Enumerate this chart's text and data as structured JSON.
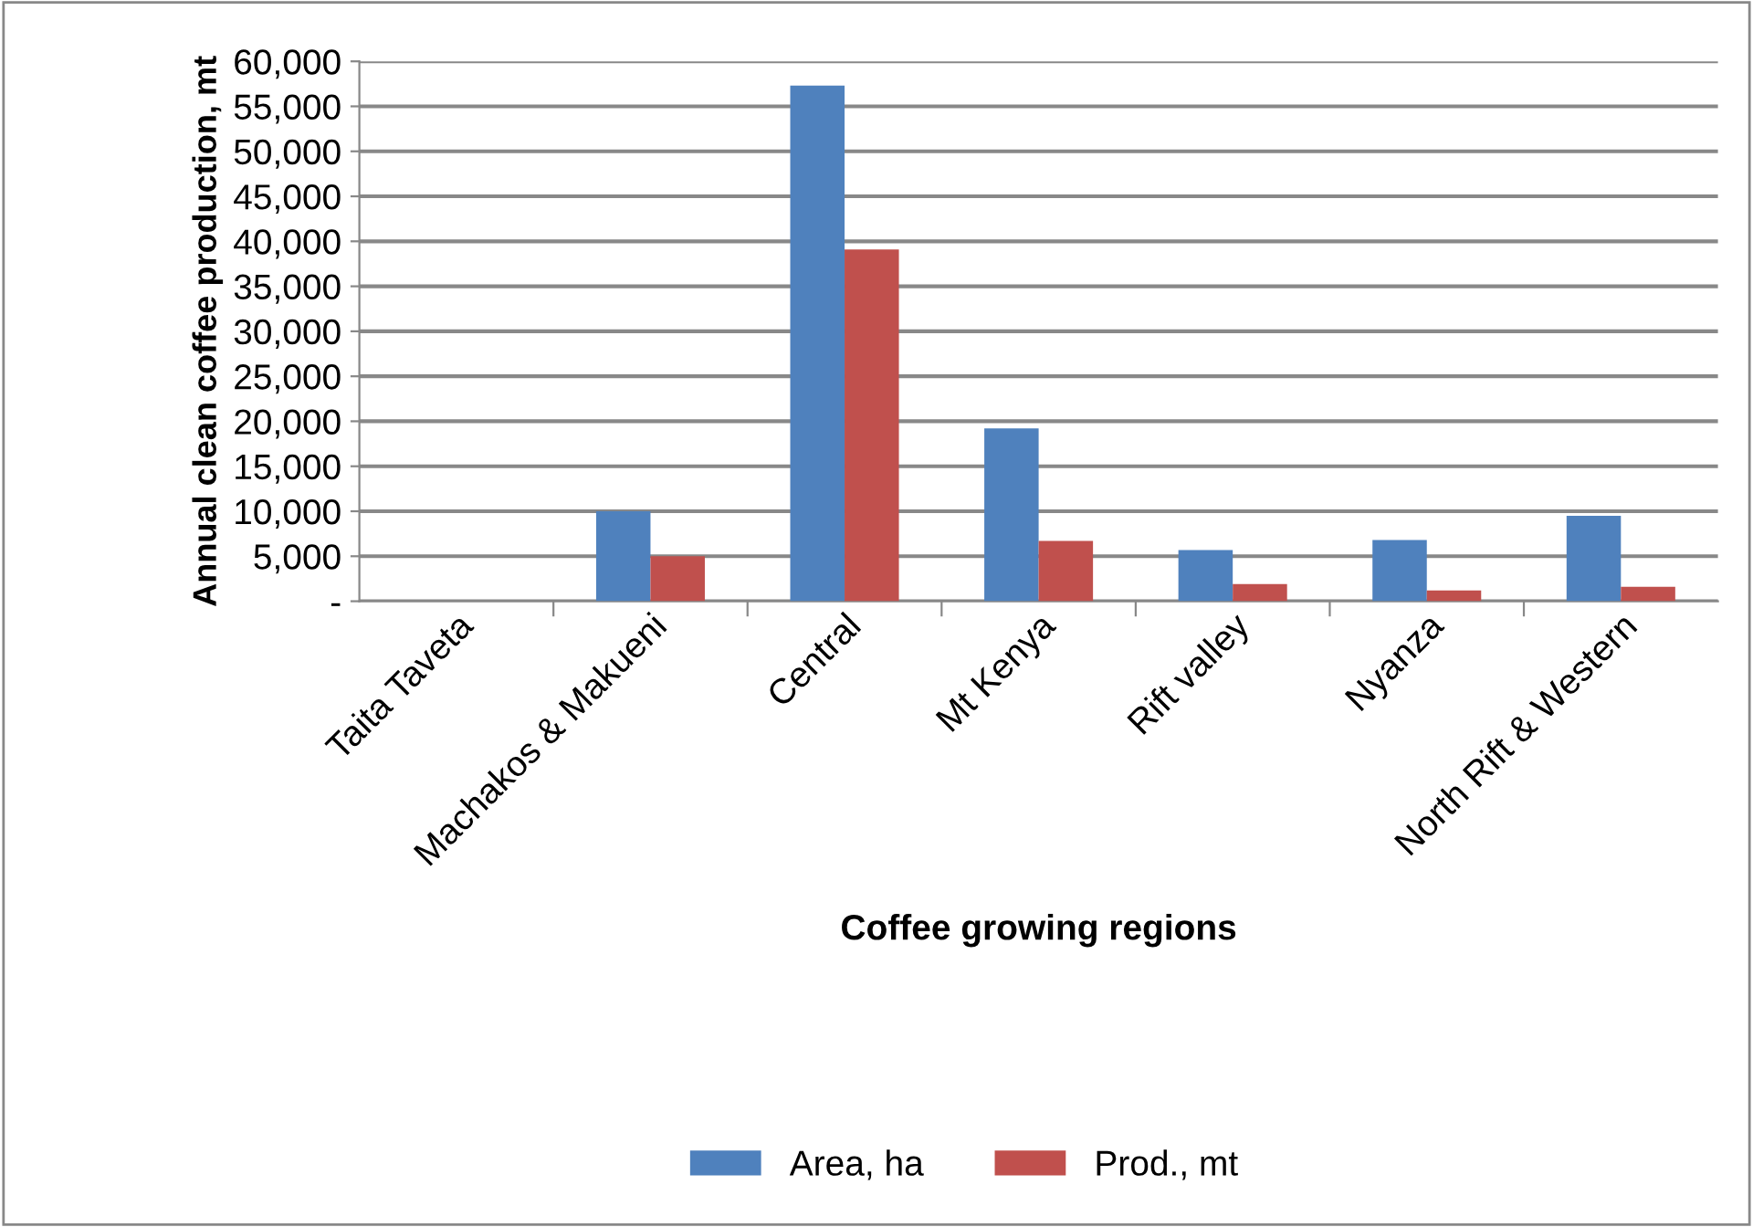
{
  "chart_data": {
    "type": "bar",
    "xlabel": "Coffee growing regions",
    "ylabel": "Annual clean coffee production, mt",
    "categories": [
      "Taita Taveta",
      "Machakos & Makueni",
      "Central",
      "Mt Kenya",
      "Rift valley",
      "Nyanza",
      "North Rift & Western"
    ],
    "series": [
      {
        "name": "Area, ha",
        "color": "#4f81bd",
        "values": [
          0,
          10000,
          57300,
          19200,
          5700,
          6800,
          9500
        ]
      },
      {
        "name": "Prod., mt",
        "color": "#c0504d",
        "values": [
          0,
          5000,
          39100,
          6700,
          1900,
          1200,
          1600
        ]
      }
    ],
    "ylim": [
      0,
      60000
    ],
    "yticks": [
      {
        "value": 0,
        "label": "-"
      },
      {
        "value": 5000,
        "label": "5,000"
      },
      {
        "value": 10000,
        "label": "10,000"
      },
      {
        "value": 15000,
        "label": "15,000"
      },
      {
        "value": 20000,
        "label": "20,000"
      },
      {
        "value": 25000,
        "label": "25,000"
      },
      {
        "value": 30000,
        "label": "30,000"
      },
      {
        "value": 35000,
        "label": "35,000"
      },
      {
        "value": 40000,
        "label": "40,000"
      },
      {
        "value": 45000,
        "label": "45,000"
      },
      {
        "value": 50000,
        "label": "50,000"
      },
      {
        "value": 55000,
        "label": "55,000"
      },
      {
        "value": 60000,
        "label": "60,000"
      }
    ],
    "grid": "y",
    "legend": "bottom"
  }
}
